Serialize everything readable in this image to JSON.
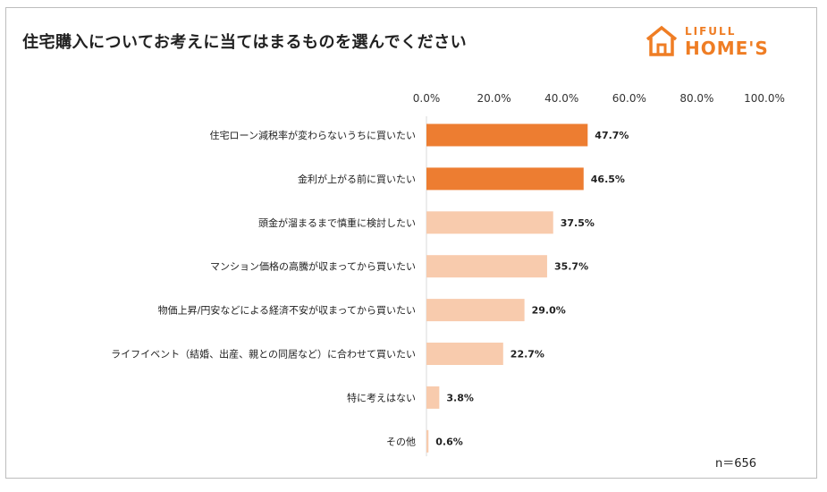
{
  "chart_data": {
    "type": "bar",
    "orientation": "horizontal",
    "title": "住宅購入についてお考えに当てはまるものを選んでください",
    "categories": [
      "住宅ローン減税率が変わらないうちに買いたい",
      "金利が上がる前に買いたい",
      "頭金が溜まるまで慎重に検討したい",
      "マンション価格の高騰が収まってから買いたい",
      "物価上昇/円安などによる経済不安が収まってから買いたい",
      "ライフイベント（結婚、出産、親との同居など）に合わせて買いたい",
      "特に考えはない",
      "その他"
    ],
    "values": [
      47.7,
      46.5,
      37.5,
      35.7,
      29.0,
      22.7,
      3.8,
      0.6
    ],
    "value_labels": [
      "47.7%",
      "46.5%",
      "37.5%",
      "35.7%",
      "29.0%",
      "22.7%",
      "3.8%",
      "0.6%"
    ],
    "highlight": [
      true,
      true,
      false,
      false,
      false,
      false,
      false,
      false
    ],
    "xlim": [
      0,
      100
    ],
    "xticks": [
      "0.0%",
      "20.0%",
      "40.0%",
      "60.0%",
      "80.0%",
      "100.0%"
    ],
    "colors": {
      "highlight": "#ed7d31",
      "normal": "#f8cbad"
    },
    "xlabel": "",
    "ylabel": ""
  },
  "note": "n＝656",
  "logo": {
    "top": "LIFULL",
    "main": "HOME'S",
    "color": "#ef7d24"
  }
}
